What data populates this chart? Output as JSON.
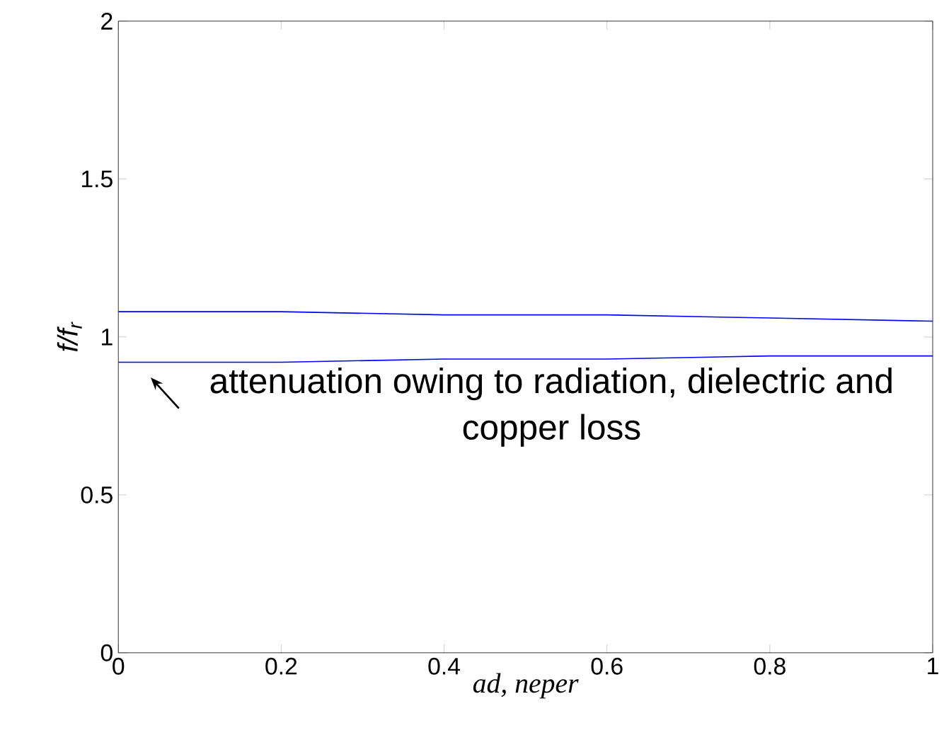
{
  "chart_data": {
    "type": "line",
    "xlabel": "ad, neper",
    "ylabel": "f/f$_{r}$",
    "x": [
      0,
      0.2,
      0.4,
      0.6,
      0.8,
      1
    ],
    "series": [
      {
        "color": "#0000ff",
        "values": [
          1.08,
          1.08,
          1.07,
          1.07,
          1.06,
          1.05
        ]
      },
      {
        "color": "#0000ff",
        "values": [
          0.92,
          0.92,
          0.93,
          0.93,
          0.94,
          0.94
        ]
      }
    ],
    "xlim": [
      0,
      1
    ],
    "ylim": [
      0,
      2
    ],
    "xticks": [
      0,
      0.2,
      0.4,
      0.6,
      0.8,
      1
    ],
    "yticks": [
      0,
      0.5,
      1,
      1.5,
      2
    ],
    "grid": false,
    "marker": "none",
    "line_style": "solid",
    "annotations": [
      "attenuation owing to radiation, dielectric and copper loss"
    ]
  }
}
